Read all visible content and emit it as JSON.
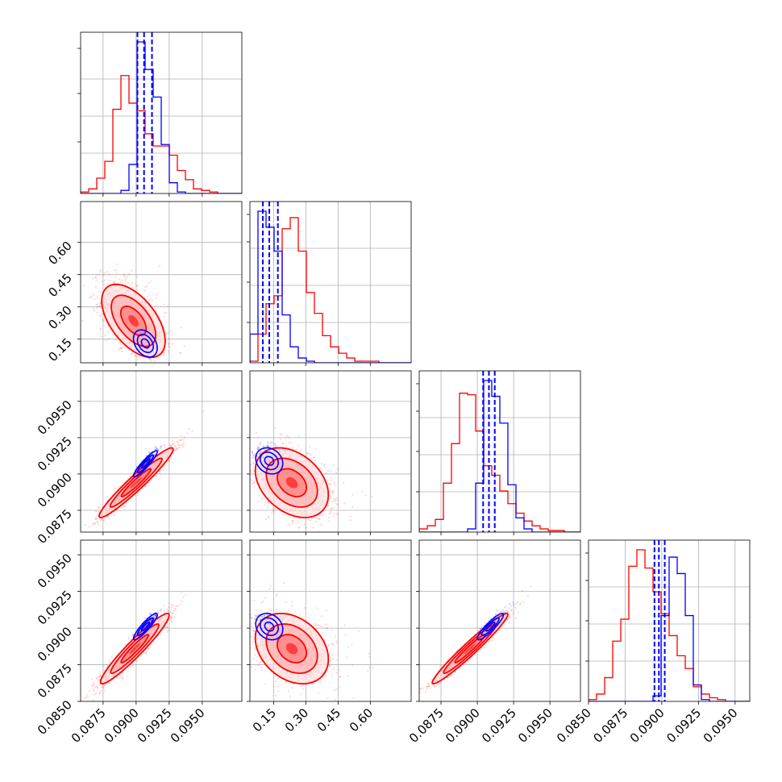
{
  "chart_data": {
    "type": "corner",
    "title": "",
    "parameters": [
      "",
      "",
      "",
      ""
    ],
    "series": [
      {
        "color": "#ff0000",
        "style": "samples + density contours + histograms"
      },
      {
        "color": "#0000ff",
        "style": "density contours + histograms + quantile lines"
      }
    ],
    "grid": true,
    "axes": {
      "p0": {
        "range": [
          0.0858,
          0.098
        ],
        "ticks": [
          "0.0875",
          "0.0900",
          "0.0925",
          "0.0950"
        ],
        "tick_values": [
          0.0875,
          0.09,
          0.0925,
          0.095
        ]
      },
      "p1": {
        "range": [
          0.04,
          0.79
        ],
        "ticks": [
          "0.15",
          "0.30",
          "0.45",
          "0.60"
        ],
        "tick_values": [
          0.15,
          0.3,
          0.45,
          0.6
        ]
      },
      "p2": {
        "range": [
          0.086,
          0.0971
        ],
        "ticks": [
          "0.0875",
          "0.0900",
          "0.0925",
          "0.0950"
        ],
        "tick_values": [
          0.0875,
          0.09,
          0.0925,
          0.095
        ]
      },
      "p3": {
        "range": [
          0.085,
          0.096
        ],
        "ticks": [
          "0.0850",
          "0.0875",
          "0.0900",
          "0.0925",
          "0.0950"
        ],
        "tick_values": [
          0.085,
          0.0875,
          0.09,
          0.0925,
          0.095
        ]
      }
    },
    "histograms": {
      "p0": {
        "red": {
          "edges_start": 0.0858,
          "bin_width": 0.00061,
          "counts": [
            1,
            3,
            10,
            21,
            55,
            77,
            59,
            54,
            39,
            31,
            31,
            25,
            15,
            9,
            3,
            2,
            1,
            0,
            0,
            0
          ]
        },
        "blue": {
          "edges_start": 0.0858,
          "bin_width": 0.00061,
          "counts": [
            0,
            0,
            0,
            0,
            0,
            2,
            19,
            99,
            81,
            63,
            32,
            7,
            1,
            0,
            0,
            0,
            0,
            0,
            0,
            0
          ]
        },
        "blue_quantiles": [
          0.0901,
          0.0906,
          0.0912
        ]
      },
      "p1": {
        "red": {
          "edges_start": 0.04,
          "bin_width": 0.0375,
          "counts": [
            1,
            18,
            37,
            42,
            84,
            91,
            70,
            44,
            31,
            17,
            10,
            6,
            3,
            1,
            1,
            1,
            0,
            0,
            0,
            0
          ]
        },
        "blue": {
          "edges_start": 0.04,
          "bin_width": 0.0375,
          "counts": [
            18,
            95,
            85,
            70,
            30,
            10,
            3,
            1,
            0,
            0,
            0,
            0,
            0,
            0,
            0,
            0,
            0,
            0,
            0,
            0
          ]
        },
        "blue_quantiles": [
          0.1,
          0.13,
          0.17
        ]
      },
      "p2": {
        "red": {
          "edges_start": 0.086,
          "bin_width": 0.000555,
          "counts": [
            2,
            4,
            8,
            31,
            56,
            88,
            87,
            64,
            42,
            36,
            26,
            18,
            12,
            7,
            4,
            2,
            1,
            1,
            0,
            0
          ]
        },
        "blue": {
          "edges_start": 0.086,
          "bin_width": 0.000555,
          "counts": [
            0,
            0,
            0,
            0,
            0,
            0,
            2,
            31,
            96,
            86,
            69,
            30,
            9,
            2,
            0,
            0,
            0,
            0,
            0,
            0
          ]
        },
        "blue_quantiles": [
          0.0904,
          0.0908,
          0.0912
        ]
      },
      "p3": {
        "red": {
          "edges_start": 0.085,
          "bin_width": 0.00055,
          "counts": [
            1,
            4,
            13,
            33,
            45,
            74,
            83,
            73,
            60,
            48,
            36,
            25,
            18,
            8,
            4,
            2,
            1,
            0,
            0,
            0
          ]
        },
        "blue": {
          "edges_start": 0.085,
          "bin_width": 0.00055,
          "counts": [
            0,
            0,
            0,
            0,
            0,
            0,
            0,
            0,
            3,
            47,
            79,
            70,
            47,
            9,
            1,
            0,
            0,
            0,
            0,
            0
          ]
        },
        "blue_quantiles": [
          0.0895,
          0.0898,
          0.0902
        ]
      }
    },
    "joint": {
      "p1_vs_p0": {
        "red": {
          "mean": [
            0.0898,
            0.235
          ],
          "sd": [
            0.0012,
            0.085
          ],
          "rho": -0.55
        },
        "blue": {
          "mean": [
            0.0907,
            0.13
          ],
          "sd": [
            0.0005,
            0.035
          ],
          "rho": -0.35
        }
      },
      "p2_vs_p0": {
        "red": {
          "mean": [
            0.09,
            0.0894
          ],
          "sd": [
            0.0014,
            0.0012
          ],
          "rho": 0.96
        },
        "blue": {
          "mean": [
            0.0907,
            0.0907
          ],
          "sd": [
            0.0005,
            0.0005
          ],
          "rho": 0.92
        }
      },
      "p2_vs_p1": {
        "red": {
          "mean": [
            0.235,
            0.0894
          ],
          "sd": [
            0.085,
            0.0012
          ],
          "rho": -0.35
        },
        "blue": {
          "mean": [
            0.13,
            0.0909
          ],
          "sd": [
            0.035,
            0.0005
          ],
          "rho": -0.2
        }
      },
      "p3_vs_p0": {
        "red": {
          "mean": [
            0.0899,
            0.0886
          ],
          "sd": [
            0.0013,
            0.0012
          ],
          "rho": 0.95
        },
        "blue": {
          "mean": [
            0.0907,
            0.0901
          ],
          "sd": [
            0.0005,
            0.0005
          ],
          "rho": 0.9
        }
      },
      "p3_vs_p1": {
        "red": {
          "mean": [
            0.235,
            0.0886
          ],
          "sd": [
            0.085,
            0.0012
          ],
          "rho": -0.3
        },
        "blue": {
          "mean": [
            0.13,
            0.0901
          ],
          "sd": [
            0.035,
            0.0005
          ],
          "rho": -0.2
        }
      },
      "p3_vs_p2": {
        "red": {
          "mean": [
            0.0895,
            0.0886
          ],
          "sd": [
            0.0013,
            0.0012
          ],
          "rho": 0.97
        },
        "blue": {
          "mean": [
            0.0909,
            0.0901
          ],
          "sd": [
            0.0005,
            0.0005
          ],
          "rho": 0.9
        }
      }
    }
  }
}
